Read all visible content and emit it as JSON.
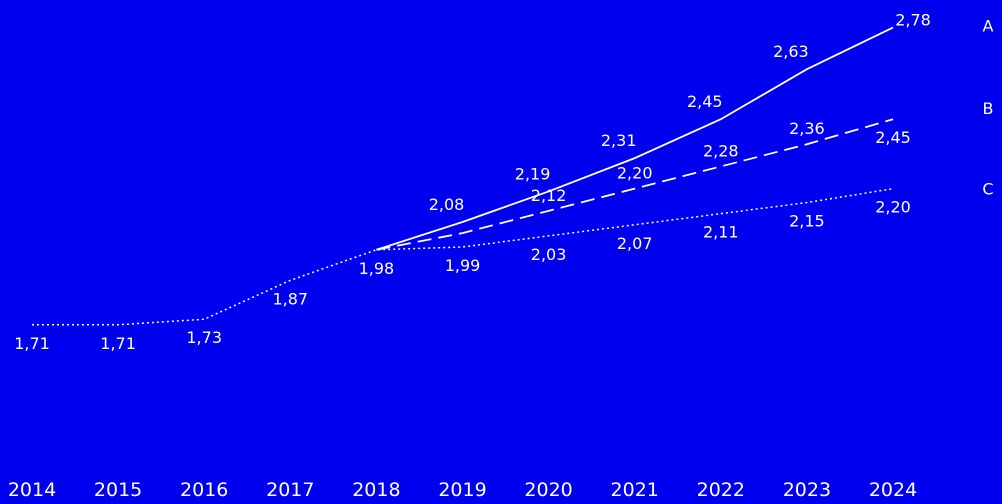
{
  "chart_data": {
    "type": "line",
    "title": "",
    "xlabel": "",
    "ylabel": "",
    "x": [
      "2014",
      "2015",
      "2016",
      "2017",
      "2018",
      "2019",
      "2020",
      "2021",
      "2022",
      "2023",
      "2024"
    ],
    "ylim": [
      1.0,
      2.8
    ],
    "grid": false,
    "legend": "series labels at right end",
    "decimal_separator": ",",
    "colors": {
      "background": "#0000ee",
      "line": "#ffffff",
      "text": "#ffffff"
    },
    "series": [
      {
        "name": "A",
        "style": "solid",
        "values": [
          null,
          null,
          null,
          null,
          1.98,
          2.08,
          2.19,
          2.31,
          2.45,
          2.63,
          2.78
        ],
        "labels": [
          null,
          null,
          null,
          null,
          null,
          "2,08",
          "2,19",
          "2,31",
          "2,45",
          "2,63",
          "2,78"
        ]
      },
      {
        "name": "B",
        "style": "dashed",
        "values": [
          null,
          null,
          null,
          null,
          1.98,
          2.04,
          2.12,
          2.2,
          2.28,
          2.36,
          2.45
        ],
        "labels": [
          null,
          null,
          null,
          null,
          null,
          null,
          "2,12",
          "2,20",
          "2,28",
          "2,36",
          "2,45"
        ]
      },
      {
        "name": "C",
        "style": "dotted",
        "values": [
          1.71,
          1.71,
          1.73,
          1.87,
          1.98,
          1.99,
          2.03,
          2.07,
          2.11,
          2.15,
          2.2
        ],
        "labels": [
          "1,71",
          "1,71",
          "1,73",
          "1,87",
          "1,98",
          "1,99",
          "2,03",
          "2,07",
          "2,11",
          "2,15",
          "2,20"
        ]
      }
    ]
  }
}
